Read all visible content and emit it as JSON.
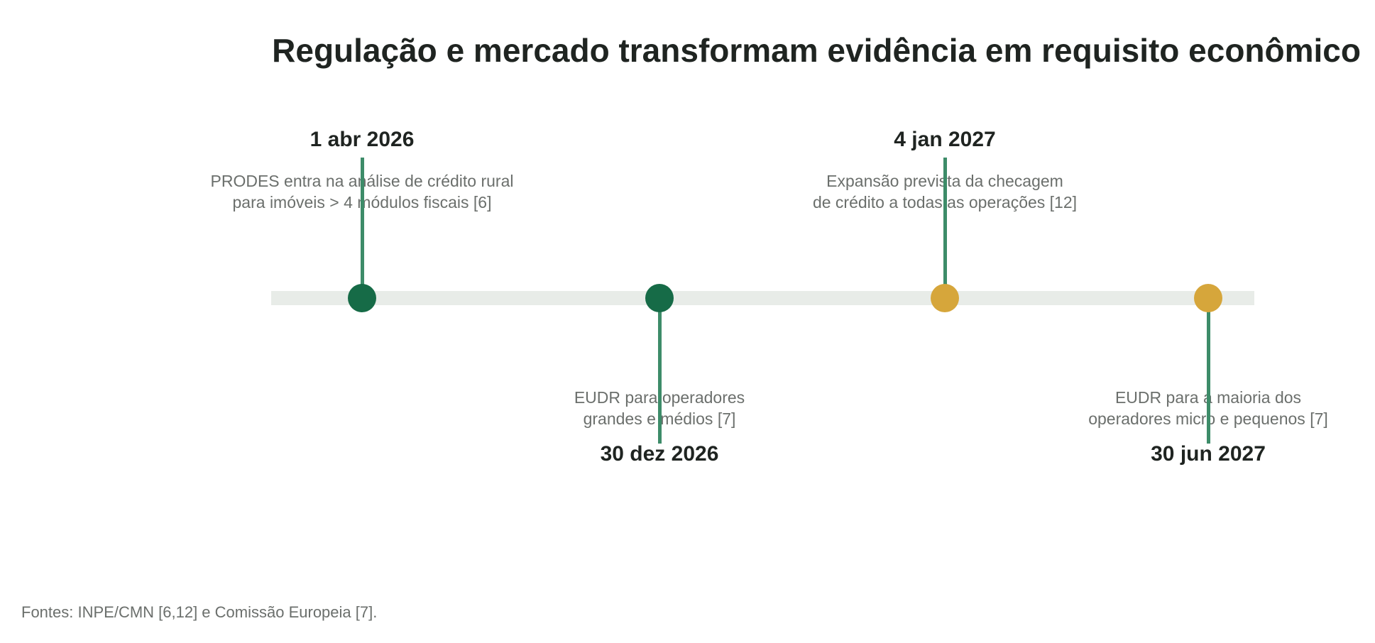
{
  "title": "Regulação e mercado transformam evidência em requisito econômico",
  "colors": {
    "green": "#166b47",
    "gold": "#d6a63b",
    "stem": "#3d8c69",
    "track": "#e8ece8"
  },
  "milestones": [
    {
      "date": "1 abr 2026",
      "lines": [
        "PRODES entra na análise de crédito rural",
        "para imóveis > 4 módulos fiscais [6]"
      ],
      "color": "#166b47",
      "position": "above"
    },
    {
      "date": "30 dez 2026",
      "lines": [
        "EUDR para operadores",
        "grandes e médios [7]"
      ],
      "color": "#166b47",
      "position": "below"
    },
    {
      "date": "4 jan 2027",
      "lines": [
        "Expansão prevista da checagem",
        "de crédito a todas as operações [12]"
      ],
      "color": "#d6a63b",
      "position": "above"
    },
    {
      "date": "30 jun 2027",
      "lines": [
        "EUDR para a maioria dos",
        "operadores micro e pequenos [7]"
      ],
      "color": "#d6a63b",
      "position": "below"
    }
  ],
  "source": "Fontes: INPE/CMN [6,12] e Comissão Europeia [7]."
}
